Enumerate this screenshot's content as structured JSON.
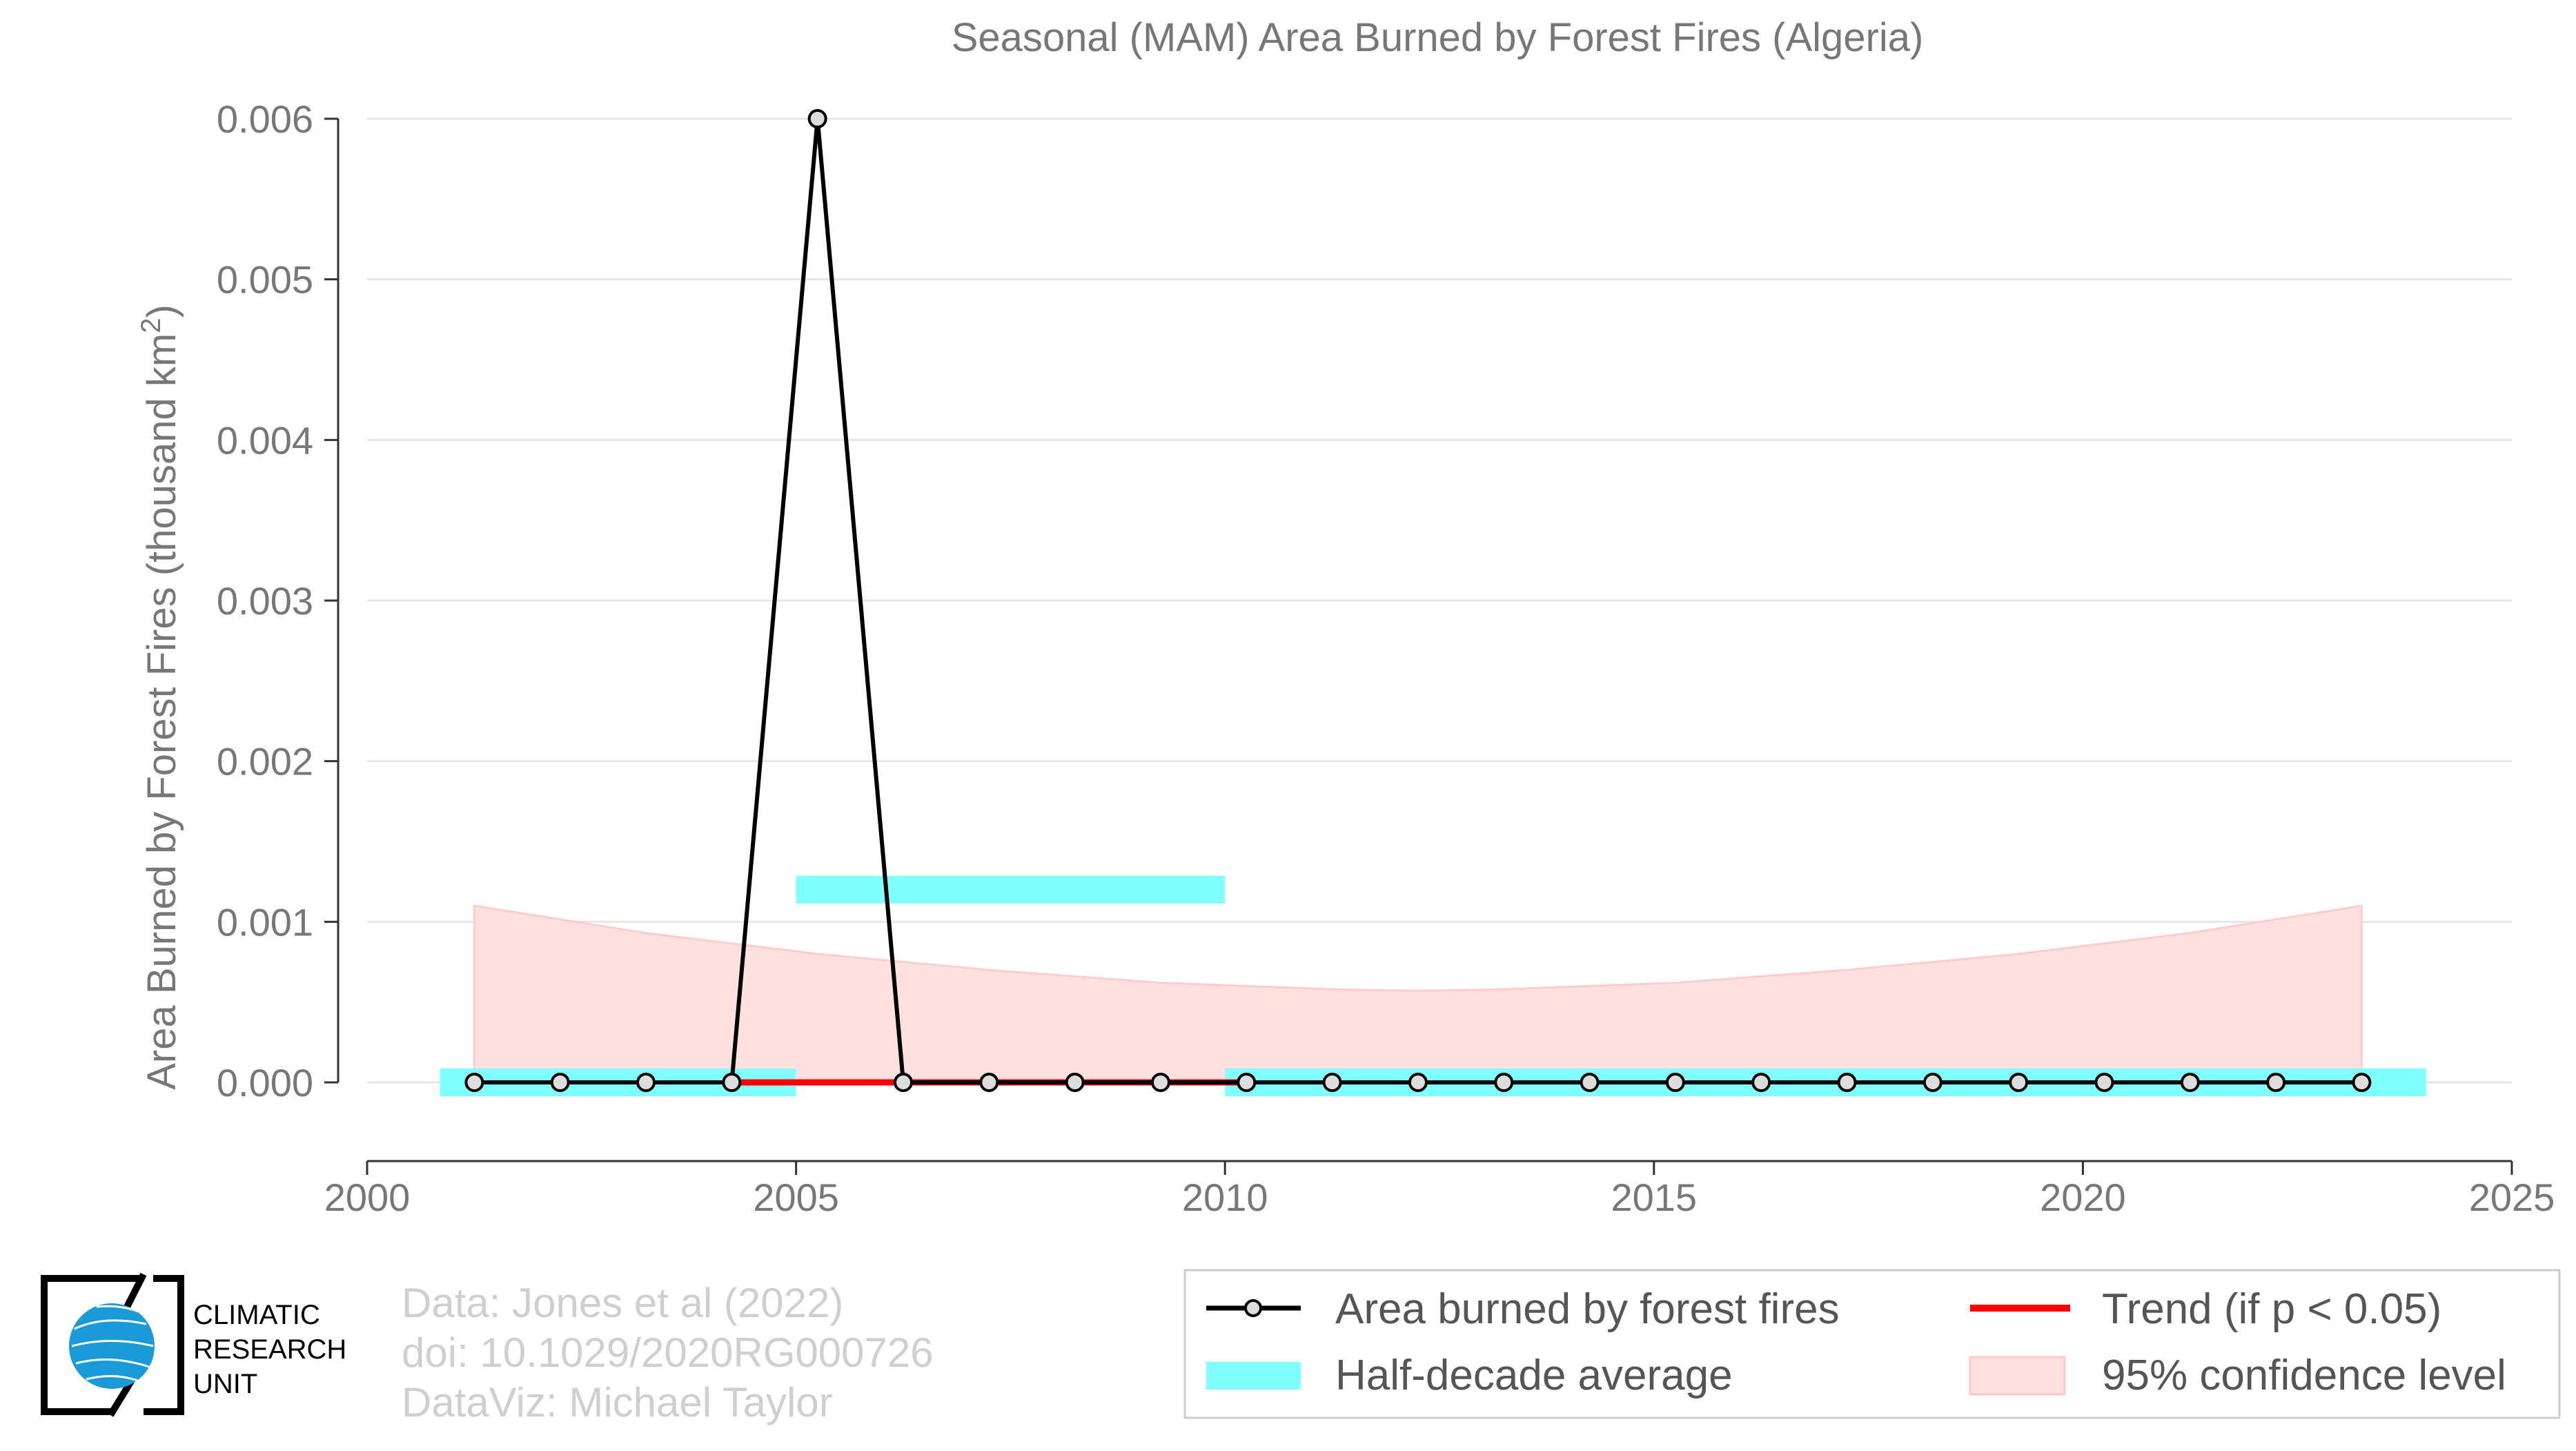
{
  "chart_data": {
    "type": "line",
    "title": "Seasonal (MAM) Area Burned by Forest Fires (Algeria)",
    "xlabel": "",
    "ylabel": "Area Burned by Forest Fires (thousand km²)",
    "ylabel_main": "Area Burned by Forest Fires (thousand km",
    "ylabel_sup": "2",
    "ylabel_close": ")",
    "xlim": [
      2000,
      2025
    ],
    "ylim": [
      -0.0005,
      0.006
    ],
    "x_ticks": [
      2000,
      2005,
      2010,
      2015,
      2020,
      2025
    ],
    "y_ticks": [
      0.0,
      0.001,
      0.002,
      0.003,
      0.004,
      0.005,
      0.006
    ],
    "y_tick_labels": [
      "0.000",
      "0.001",
      "0.002",
      "0.003",
      "0.004",
      "0.005",
      "0.006"
    ],
    "grid": true,
    "series": [
      {
        "name": "Area burned by forest fires",
        "color": "#000000",
        "x": [
          2001.25,
          2002.25,
          2003.25,
          2004.25,
          2005.25,
          2006.25,
          2007.25,
          2008.25,
          2009.25,
          2010.25,
          2011.25,
          2012.25,
          2013.25,
          2014.25,
          2015.25,
          2016.25,
          2017.25,
          2018.25,
          2019.25,
          2020.25,
          2021.25,
          2022.25,
          2023.25
        ],
        "values": [
          0,
          0,
          0,
          0,
          0.006,
          0,
          0,
          0,
          0,
          0,
          0,
          0,
          0,
          0,
          0,
          0,
          0,
          0,
          0,
          0,
          0,
          0,
          0
        ]
      }
    ],
    "half_decade_average": {
      "name": "Half-decade average",
      "color": "#80ffff",
      "segments": [
        {
          "x0": 2001,
          "x1": 2005,
          "value": 0.0
        },
        {
          "x0": 2005,
          "x1": 2010,
          "value": 0.0012
        },
        {
          "x0": 2010,
          "x1": 2024,
          "value": 0.0
        }
      ]
    },
    "trend": {
      "name": "Trend (if p < 0.05)",
      "color": "#ff0000",
      "x": [
        2004.25,
        2010.25
      ],
      "values": [
        0,
        0
      ]
    },
    "confidence_band": {
      "name": "95% confidence level",
      "color": "#ffd6d6",
      "x": [
        2001.25,
        2003.25,
        2005.25,
        2007.25,
        2009.25,
        2011.25,
        2012.25,
        2013.25,
        2015.25,
        2017.25,
        2019.25,
        2021.25,
        2023.25
      ],
      "upper": [
        0.0011,
        0.00093,
        0.0008,
        0.0007,
        0.00062,
        0.00058,
        0.00057,
        0.00058,
        0.00062,
        0.0007,
        0.0008,
        0.00093,
        0.0011
      ],
      "lower": [
        0,
        0,
        0,
        0,
        0,
        0,
        0,
        0,
        0,
        0,
        0,
        0,
        0
      ]
    },
    "legend_placement": "bottom-right"
  },
  "legend": {
    "series_label": "Area burned by forest fires",
    "trend_label": "Trend (if p < 0.05)",
    "avg_label": "Half-decade average",
    "ci_label": "95% confidence level"
  },
  "credits": {
    "line1": "Data: Jones et al (2022)",
    "line2": "doi: 10.1029/2020RG000726",
    "line3": "DataViz: Michael Taylor"
  },
  "logo": {
    "line1": "CLIMATIC",
    "line2": "RESEARCH",
    "line3": "UNIT"
  }
}
